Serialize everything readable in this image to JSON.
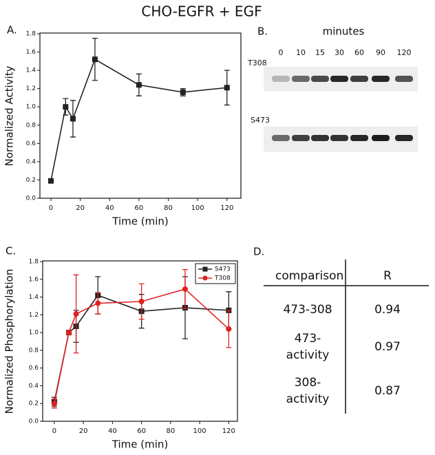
{
  "title": "CHO-EGFR + EGF",
  "chart_data": [
    {
      "type": "line",
      "label": "A.",
      "y_label": "Normalized Activity",
      "x_label": "Time (min)",
      "x": [
        0,
        10,
        15,
        30,
        60,
        90,
        120
      ],
      "series": [
        {
          "color": "#222222",
          "marker": "square",
          "values": [
            0.19,
            1.0,
            0.87,
            1.52,
            1.24,
            1.16,
            1.21
          ],
          "errors": [
            0,
            0.09,
            0.2,
            0.23,
            0.12,
            0.04,
            0.19
          ]
        }
      ],
      "xlim": [
        -7.5,
        129.5
      ],
      "xticks": [
        0,
        20,
        40,
        60,
        80,
        100,
        120
      ],
      "ylim": [
        0,
        1.8
      ],
      "yticks": [
        {
          "value": 0,
          "label": "0.0"
        },
        0.2,
        0.4,
        0.6,
        0.8,
        {
          "value": 1,
          "label": "1.0"
        },
        1.2,
        1.4,
        1.6,
        1.8
      ],
      "grid": false
    },
    {
      "type": "line",
      "label": "C.",
      "y_label": "Normalized Phosphorylation",
      "x_label": "Time (min)",
      "x": [
        0,
        10,
        15,
        30,
        60,
        90,
        120
      ],
      "series": [
        {
          "name": "S473",
          "color": "#222222",
          "marker": "square",
          "values": [
            0.22,
            1.0,
            1.07,
            1.42,
            1.24,
            1.28,
            1.25
          ],
          "errors": [
            0.05,
            0.02,
            0.18,
            0.21,
            0.19,
            0.35,
            0.21
          ]
        },
        {
          "name": "T308",
          "color": "#e02020",
          "marker": "circle",
          "values": [
            0.2,
            1.0,
            1.21,
            1.33,
            1.35,
            1.49,
            1.04
          ],
          "errors": [
            0.05,
            0.02,
            0.44,
            0.12,
            0.2,
            0.22,
            0.21
          ]
        }
      ],
      "xlim": [
        -8,
        126
      ],
      "xticks": [
        0,
        20,
        40,
        60,
        80,
        100,
        120
      ],
      "ylim": [
        0,
        1.8
      ],
      "yticks": [
        {
          "value": 0,
          "label": "0.0"
        },
        0.2,
        0.4,
        0.6,
        0.8,
        {
          "value": 1,
          "label": "1.0"
        },
        1.2,
        1.4,
        1.6,
        1.8
      ],
      "grid": false,
      "legend": "top-right"
    }
  ],
  "blot": {
    "label": "B.",
    "header": "minutes",
    "lanes": [
      0,
      10,
      15,
      30,
      60,
      90,
      120
    ],
    "rows": [
      "T308",
      "S473"
    ]
  },
  "table": {
    "label": "D.",
    "columns": [
      "comparison",
      "R"
    ],
    "rows": [
      [
        "473-308",
        0.94
      ],
      [
        "473-activity",
        0.97
      ],
      [
        "308-activity",
        0.87
      ]
    ]
  }
}
